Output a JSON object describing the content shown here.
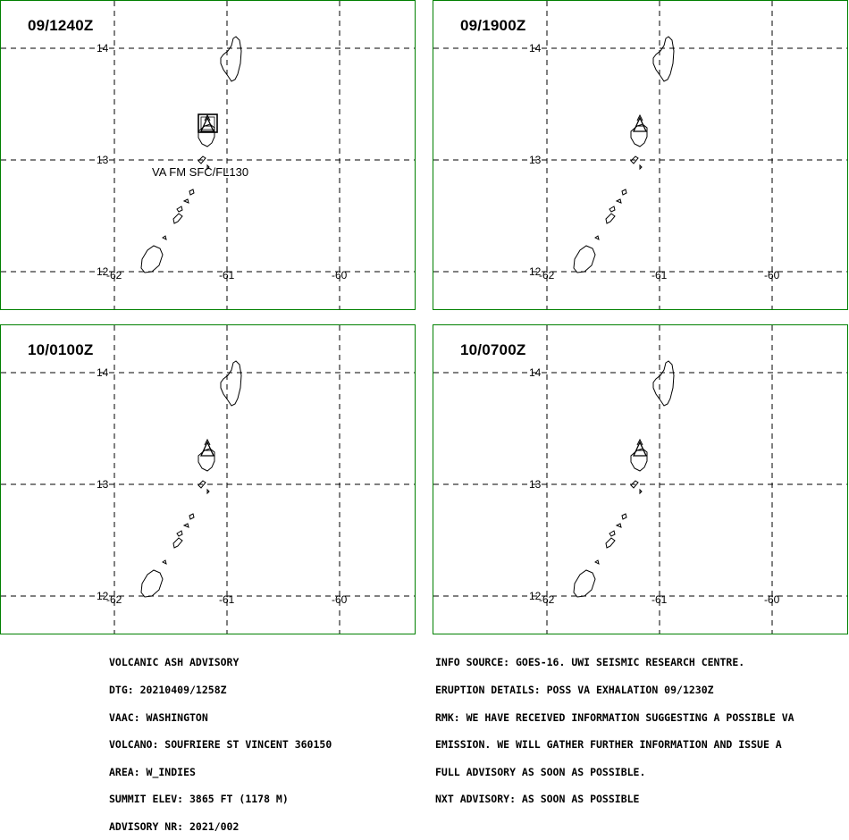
{
  "panels": [
    {
      "time": "09/1240Z",
      "annotation": "VA FM SFC/FL130",
      "has_ash_box": true
    },
    {
      "time": "09/1900Z",
      "annotation": "",
      "has_ash_box": false
    },
    {
      "time": "10/0100Z",
      "annotation": "",
      "has_ash_box": false
    },
    {
      "time": "10/0700Z",
      "annotation": "",
      "has_ash_box": false
    }
  ],
  "axes": {
    "lat_labels": [
      "14",
      "13",
      "12"
    ],
    "lon_labels": [
      "-62",
      "-61",
      "-60"
    ]
  },
  "advisory_left": [
    "VOLCANIC ASH ADVISORY",
    "DTG: 20210409/1258Z",
    "VAAC: WASHINGTON",
    "VOLCANO: SOUFRIERE ST VINCENT 360150",
    "AREA: W_INDIES",
    "SUMMIT ELEV: 3865 FT (1178 M)",
    "ADVISORY NR: 2021/002"
  ],
  "advisory_right": [
    "INFO SOURCE: GOES-16. UWI SEISMIC RESEARCH CENTRE.",
    "ERUPTION DETAILS: POSS VA EXHALATION 09/1230Z",
    "RMK: WE HAVE RECEIVED INFORMATION SUGGESTING A POSSIBLE VA",
    "EMISSION. WE WILL GATHER FURTHER INFORMATION AND ISSUE A",
    "FULL ADVISORY AS SOON AS POSSIBLE.",
    "NXT ADVISORY: AS SOON AS POSSIBLE"
  ],
  "colors": {
    "panel_border": "#008000",
    "lines": "#000000"
  },
  "icons": {
    "volcano": "volcano-icon"
  }
}
